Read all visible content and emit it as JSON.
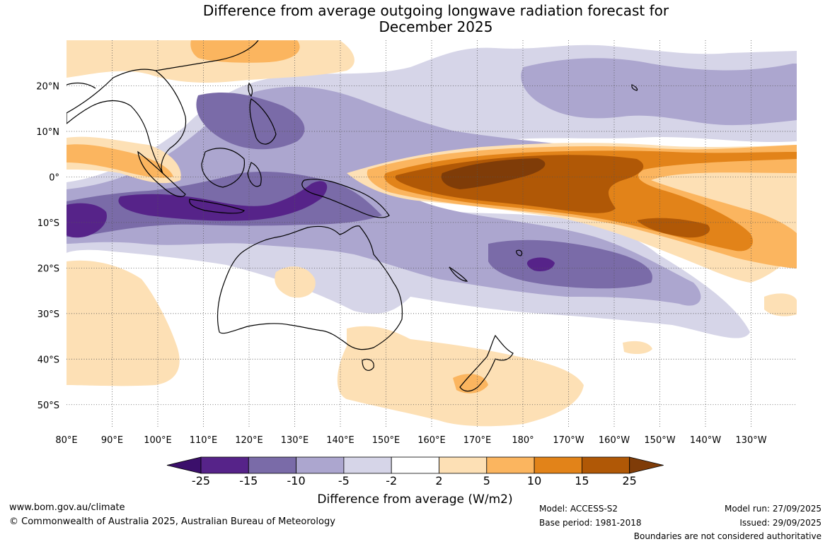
{
  "title": {
    "line1": "Difference from average outgoing longwave radiation forecast for",
    "line2": "December 2025"
  },
  "axes": {
    "lat_labels": [
      "20°N",
      "10°N",
      "0°",
      "10°S",
      "20°S",
      "30°S",
      "40°S",
      "50°S"
    ],
    "lon_labels": [
      "80°E",
      "90°E",
      "100°E",
      "110°E",
      "120°E",
      "130°E",
      "140°E",
      "150°E",
      "160°E",
      "170°E",
      "180°",
      "170°W",
      "160°W",
      "150°W",
      "140°W",
      "130°W"
    ],
    "extent": {
      "lon_min": 80,
      "lon_max": 240,
      "lat_min": -55,
      "lat_max": 30
    }
  },
  "colorbar": {
    "ticks": [
      "-25",
      "-15",
      "-10",
      "-5",
      "-2",
      "2",
      "5",
      "10",
      "15",
      "25"
    ],
    "colors": [
      "#3b0f6b",
      "#562389",
      "#7a6ba8",
      "#aca6cf",
      "#d6d5e8",
      "#ffffff",
      "#fde0b5",
      "#fbb55f",
      "#e28319",
      "#b05806",
      "#7f3c08"
    ],
    "label": "Difference from average (W/m2)"
  },
  "footer": {
    "website": "www.bom.gov.au/climate",
    "copyright": "© Commonwealth of Australia 2025, Australian Bureau of Meteorology",
    "model": "Model: ACCESS-S2",
    "base_period": "Base period: 1981-2018",
    "model_run": "Model run: 27/09/2025",
    "issued": "Issued: 29/09/2025",
    "disclaimer": "Boundaries are not considered authoritative"
  }
}
